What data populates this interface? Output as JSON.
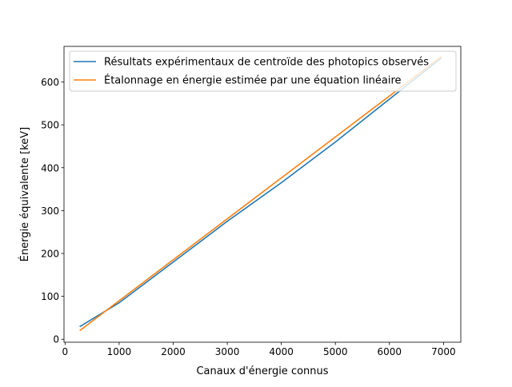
{
  "chart_data": {
    "type": "line",
    "xlabel": "Canaux d'énergie connus",
    "ylabel": "Énergie équivalente [keV]",
    "xlim": [
      -20,
      7320
    ],
    "ylim": [
      -7,
      683
    ],
    "xticks": [
      0,
      1000,
      2000,
      3000,
      4000,
      5000,
      6000,
      7000
    ],
    "yticks": [
      0,
      100,
      200,
      300,
      400,
      500,
      600
    ],
    "grid": false,
    "legend_position": "top-left",
    "series": [
      {
        "name": "Résultats expérimentaux de centroïde des photopics observés",
        "color": "#1f77b4",
        "x": [
          280,
          1000,
          2000,
          3000,
          4000,
          5000,
          6000,
          6950
        ],
        "y": [
          30,
          85,
          180,
          275,
          365,
          460,
          560,
          655
        ]
      },
      {
        "name": "Étalonnage en énergie estimée par une équation linéaire",
        "color": "#ff7f0e",
        "x": [
          280,
          6950
        ],
        "y": [
          21,
          658
        ]
      }
    ]
  }
}
